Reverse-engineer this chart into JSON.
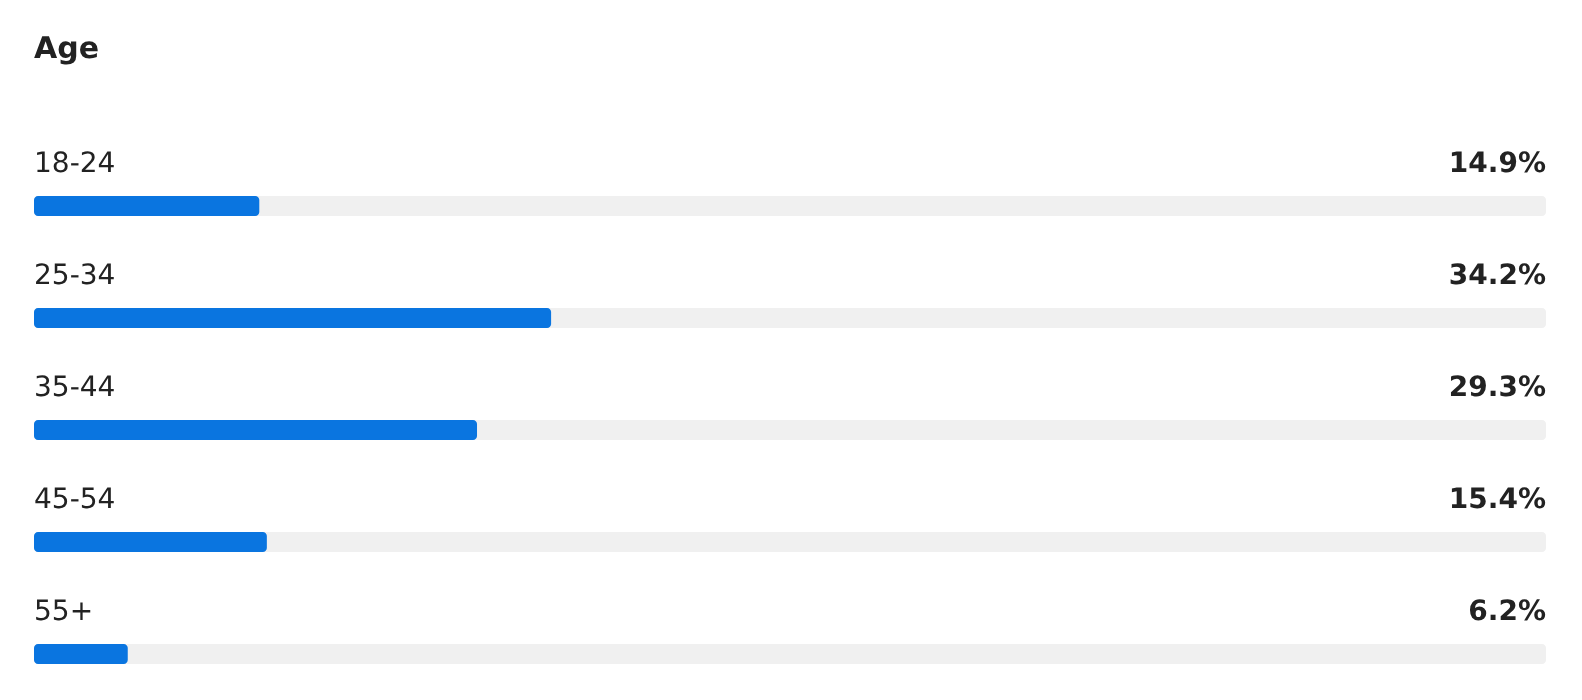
{
  "chart_data": {
    "type": "bar",
    "orientation": "horizontal",
    "title": "Age",
    "categories": [
      "18-24",
      "25-34",
      "35-44",
      "45-54",
      "55+"
    ],
    "values": [
      14.9,
      34.2,
      29.3,
      15.4,
      6.2
    ],
    "value_labels": [
      "14.9%",
      "34.2%",
      "29.3%",
      "15.4%",
      "6.2%"
    ],
    "color": "#0a75e0",
    "xlim": [
      0,
      100
    ]
  }
}
